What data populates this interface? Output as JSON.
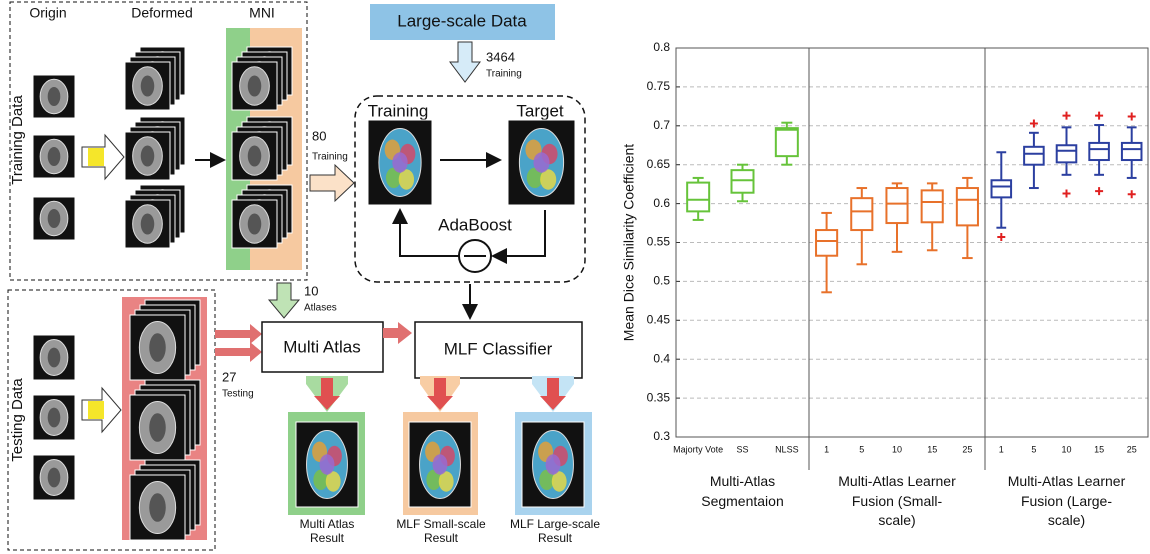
{
  "diagram": {
    "origin": "Origin",
    "deformed": "Deformed",
    "mni": "MNI",
    "training_data": "Training Data",
    "large_scale_data": "Large-scale Data",
    "large_count": "3464",
    "large_count_label": "Training",
    "training_count": "80",
    "training_count_label": "Training",
    "training": "Training",
    "target": "Target",
    "adaboost": "AdaBoost",
    "testing_data": "Testing Data",
    "atlas_count": "10",
    "atlas_count_label": "Atlases",
    "testing_count": "27",
    "testing_count_label": "Testing",
    "multi_atlas": "Multi Atlas",
    "mlf_classifier": "MLF Classifier",
    "results": [
      "Multi Atlas Result",
      "MLF Small-scale Result",
      "MLF Large-scale Result"
    ]
  },
  "chart_data": {
    "type": "box",
    "ylabel": "Mean Dice Similarity Coefficient",
    "ylim": [
      0.3,
      0.8
    ],
    "yticks": [
      0.3,
      0.35,
      0.4,
      0.45,
      0.5,
      0.55,
      0.6,
      0.65,
      0.7,
      0.75,
      0.8
    ],
    "grid": true,
    "outlier_color": "#e02020",
    "series": [
      {
        "name": "Multi-Atlas Segmentaion",
        "color": "#66c33a",
        "categories": [
          "Majorty Vote",
          "SS",
          "NLSS"
        ],
        "min": [
          0.579,
          0.603,
          0.65
        ],
        "q1": [
          0.59,
          0.614,
          0.661
        ],
        "median": [
          0.605,
          0.63,
          0.695
        ],
        "q3": [
          0.627,
          0.643,
          0.697
        ],
        "max": [
          0.633,
          0.65,
          0.704
        ],
        "outliers": [
          [],
          [],
          []
        ]
      },
      {
        "name": "Multi-Atlas Learner Fusion (Small-scale)",
        "color": "#e8712a",
        "categories": [
          "1",
          "5",
          "10",
          "15",
          "25"
        ],
        "min": [
          0.486,
          0.522,
          0.538,
          0.54,
          0.53
        ],
        "q1": [
          0.533,
          0.566,
          0.575,
          0.576,
          0.572
        ],
        "median": [
          0.552,
          0.59,
          0.6,
          0.602,
          0.605
        ],
        "q3": [
          0.566,
          0.607,
          0.62,
          0.617,
          0.62
        ],
        "max": [
          0.588,
          0.62,
          0.626,
          0.626,
          0.633
        ],
        "outliers": [
          [],
          [],
          [],
          [],
          []
        ]
      },
      {
        "name": "Multi-Atlas Learner Fusion (Large-scale)",
        "color": "#2b3fa0",
        "categories": [
          "1",
          "5",
          "10",
          "15",
          "25"
        ],
        "min": [
          0.569,
          0.62,
          0.637,
          0.637,
          0.633
        ],
        "q1": [
          0.608,
          0.65,
          0.653,
          0.656,
          0.656
        ],
        "median": [
          0.622,
          0.664,
          0.668,
          0.67,
          0.67
        ],
        "q3": [
          0.63,
          0.673,
          0.675,
          0.678,
          0.678
        ],
        "max": [
          0.666,
          0.691,
          0.698,
          0.701,
          0.698
        ],
        "outliers": [
          [
            0.557
          ],
          [
            0.703
          ],
          [
            0.713,
            0.613
          ],
          [
            0.713,
            0.616
          ],
          [
            0.712,
            0.612
          ]
        ]
      }
    ]
  }
}
